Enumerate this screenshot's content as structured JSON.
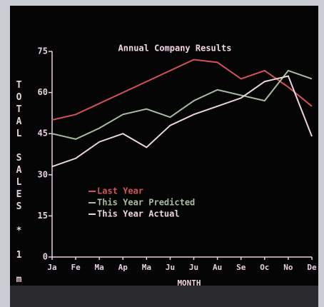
{
  "chart_data": {
    "type": "line",
    "title": "Annual Company Results",
    "x_label": "MONTH",
    "y_label": "TOTAL SALES * 1 m",
    "categories": [
      "Ja",
      "Fe",
      "Ma",
      "Ap",
      "Ma",
      "Ju",
      "Ju",
      "Au",
      "Se",
      "Oc",
      "No",
      "De"
    ],
    "series": [
      {
        "name": "Last Year",
        "color": "#d0525a",
        "values": [
          50,
          52,
          56,
          60,
          64,
          68,
          72,
          71,
          65,
          68,
          62,
          55
        ]
      },
      {
        "name": "This Year Predicted",
        "color": "#a8bca2",
        "values": [
          45,
          43,
          47,
          52,
          54,
          51,
          57,
          61,
          59,
          57,
          68,
          65
        ]
      },
      {
        "name": "This Year Actual",
        "color": "#ecd4dc",
        "values": [
          33,
          36,
          42,
          45,
          40,
          48,
          52,
          55,
          58,
          64,
          66,
          44
        ]
      }
    ],
    "ylim": [
      0,
      75
    ],
    "yticks": [
      0,
      15,
      30,
      45,
      60,
      75
    ]
  }
}
